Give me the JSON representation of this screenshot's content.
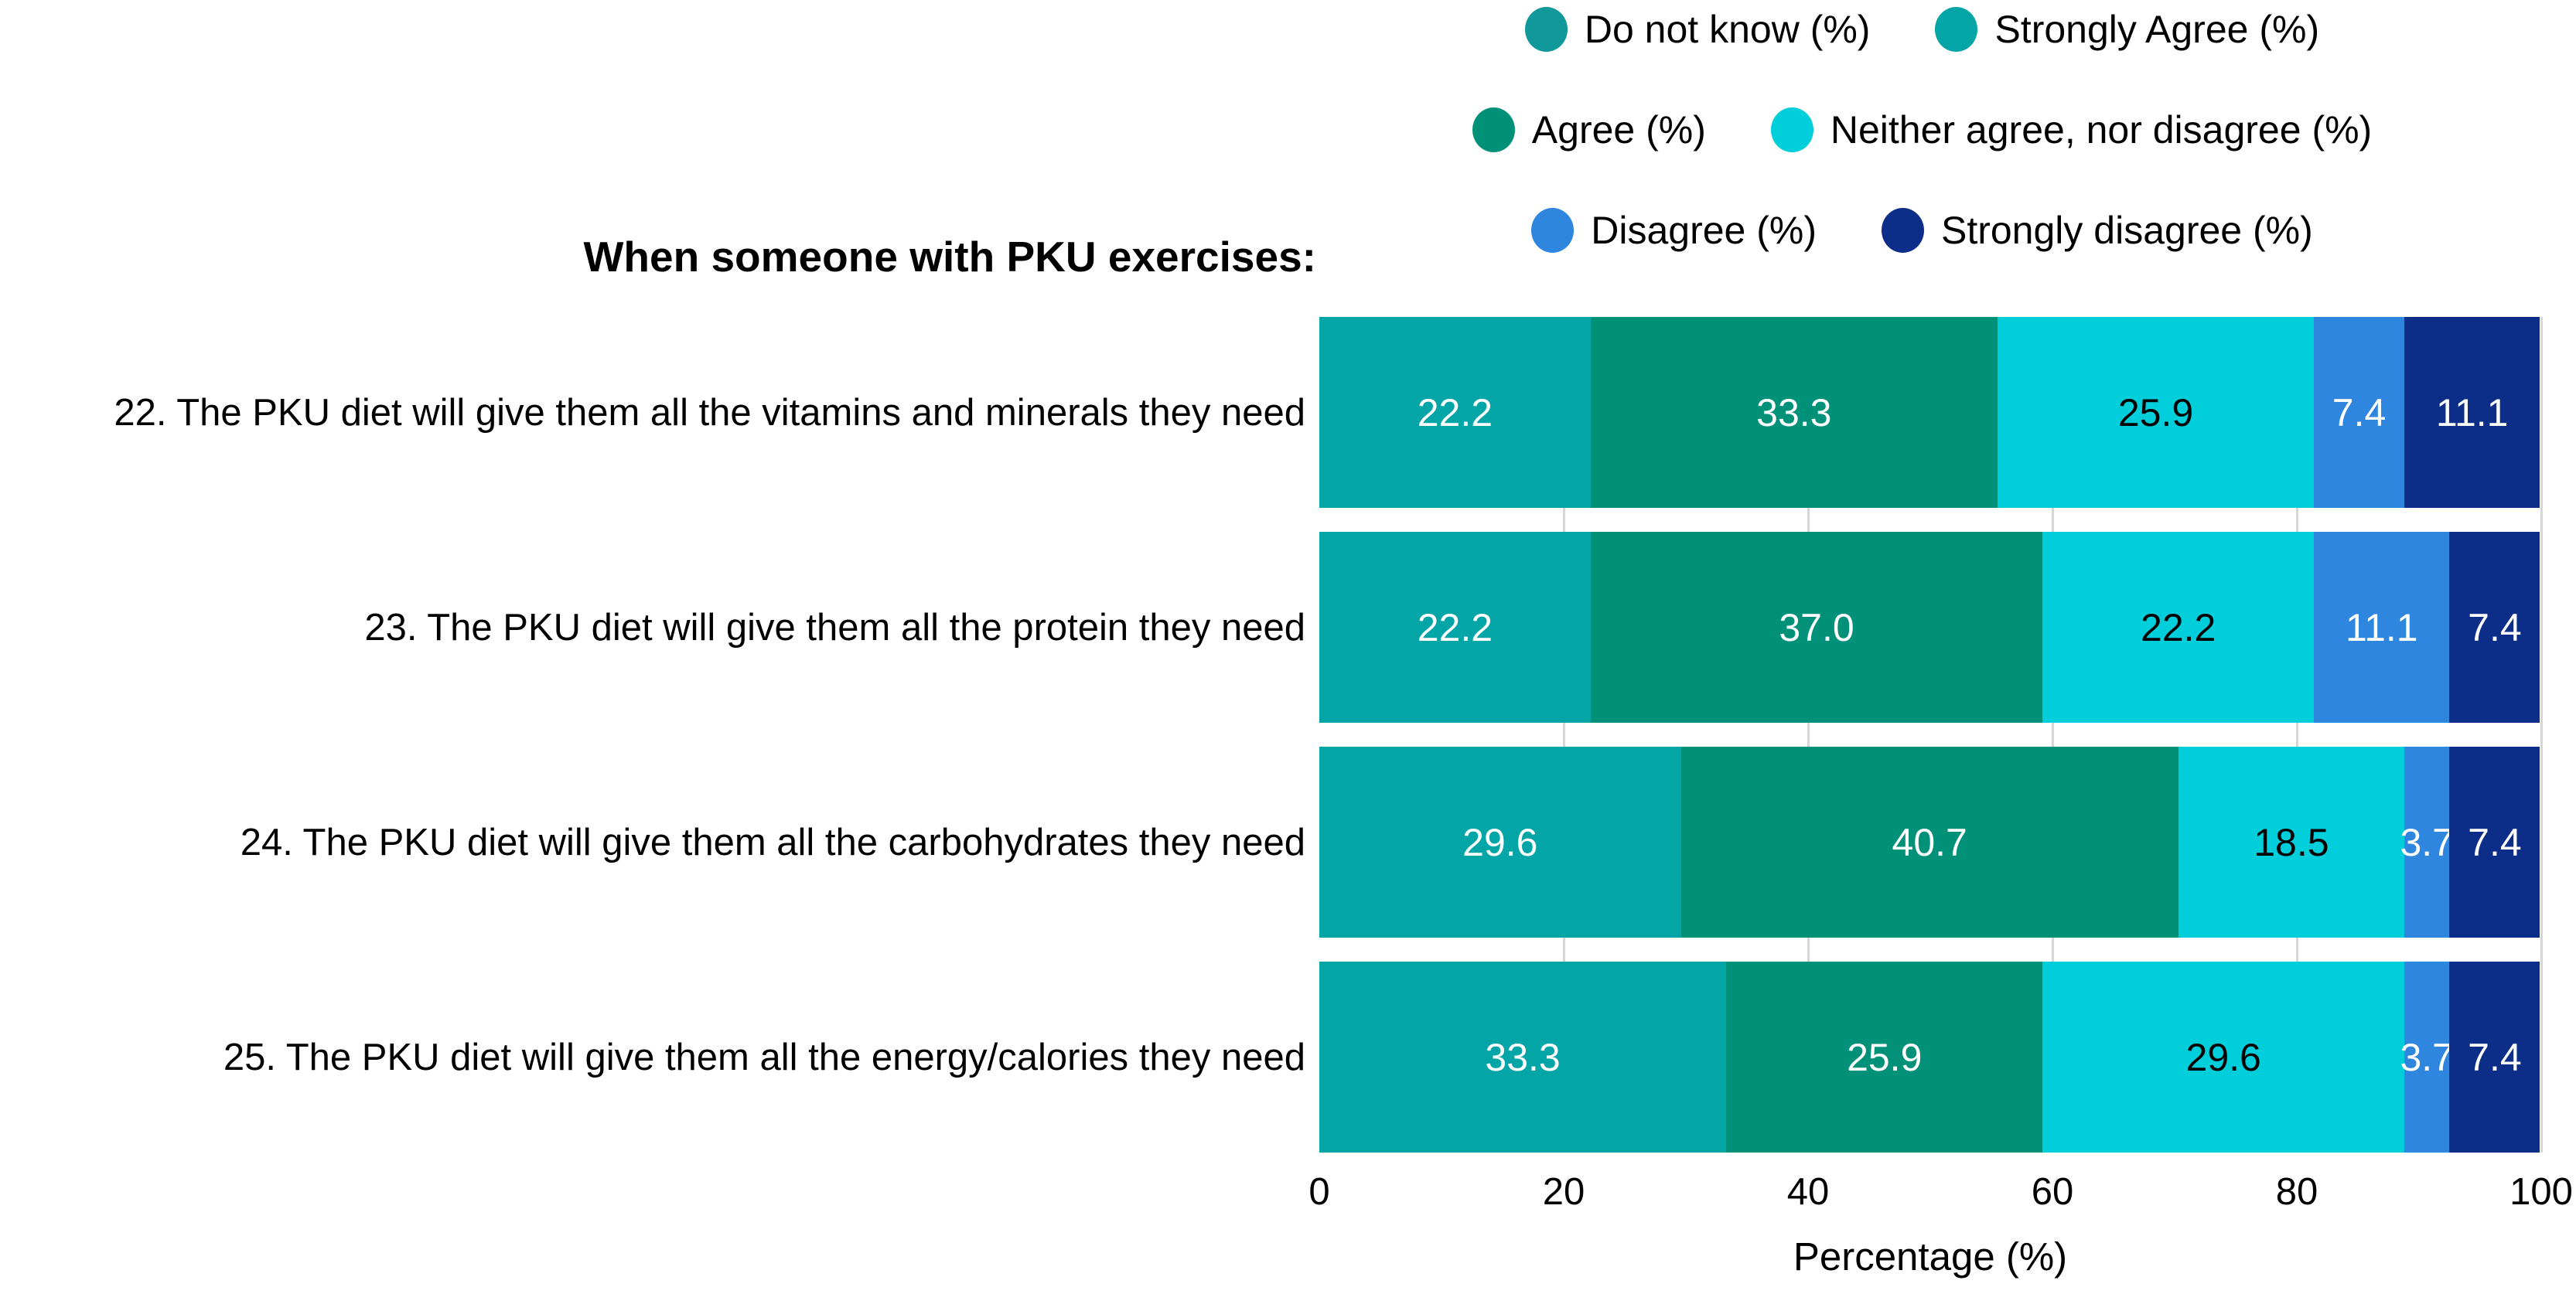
{
  "title": "When someone with PKU exercises:",
  "colors": {
    "background": "#ffffff",
    "gridline": "#d6d6d6",
    "text": "#000000"
  },
  "chart_data": {
    "type": "bar",
    "orientation": "horizontal-stacked",
    "title": "When someone with PKU exercises:",
    "xlabel": "Percentage (%)",
    "xlim": [
      0,
      100
    ],
    "x_ticks": [
      "0",
      "20",
      "40",
      "60",
      "80",
      "100"
    ],
    "grid": "vertical gridlines at ticks, visible in gaps between bars",
    "legend_position": "top",
    "legend_swatch": "circle",
    "categories": [
      "22. The PKU diet will give them all the vitamins and minerals they need",
      "23. The PKU diet will give them all the protein they need",
      "24. The PKU diet will give them all the carbohydrates they need",
      "25. The PKU diet will give them all the energy/calories they need"
    ],
    "series": [
      {
        "name": "Do not know (%)",
        "color": "#11989a",
        "label_color": "#ffffff",
        "values": [
          0,
          0,
          0,
          0
        ],
        "labels": [
          "",
          "",
          "",
          ""
        ]
      },
      {
        "name": "Strongly Agree (%)",
        "color": "#04a5a7",
        "label_color": "#ffffff",
        "values": [
          22.2,
          22.2,
          29.6,
          33.3
        ],
        "labels": [
          "22.2",
          "22.2",
          "29.6",
          "33.3"
        ]
      },
      {
        "name": "Agree (%)",
        "color": "#009178",
        "label_color": "#ffffff",
        "values": [
          33.3,
          37.0,
          40.7,
          25.9
        ],
        "labels": [
          "33.3",
          "37.0",
          "40.7",
          "25.9"
        ]
      },
      {
        "name": "Neither agree, nor disagree (%)",
        "color": "#00ceda",
        "label_color": "#000000",
        "values": [
          25.9,
          22.2,
          18.5,
          29.6
        ],
        "labels": [
          "25.9",
          "22.2",
          "18.5",
          "29.6"
        ]
      },
      {
        "name": "Disagree (%)",
        "color": "#2e86de",
        "label_color": "#ffffff",
        "values": [
          7.4,
          11.1,
          3.7,
          3.7
        ],
        "labels": [
          "7.4",
          "11.1",
          "3.7",
          "3.7"
        ]
      },
      {
        "name": "Strongly disagree (%)",
        "color": "#0c2e88",
        "label_color": "#ffffff",
        "values": [
          11.1,
          7.4,
          7.4,
          7.4
        ],
        "labels": [
          "11.1",
          "7.4",
          "7.4",
          "7.4"
        ]
      }
    ],
    "legend_rows": [
      [
        0,
        1
      ],
      [
        2,
        3
      ],
      [
        4,
        5
      ]
    ]
  }
}
